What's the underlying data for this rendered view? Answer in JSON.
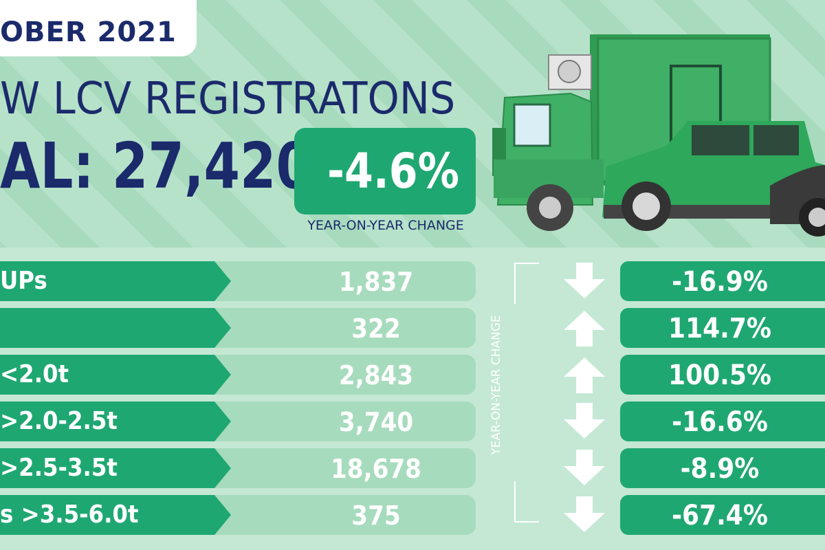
{
  "header": {
    "date": "OBER 2021",
    "headline": "W LCV REGISTRATONS",
    "total": "AL: 27,420"
  },
  "yoy": {
    "value": "-4.6%",
    "caption": "YEAR-ON-YEAR CHANGE"
  },
  "side_caption": "YEAR-ON-YEAR CHANGE",
  "rows": [
    {
      "label": "UPs",
      "value": "1,837",
      "change": "-16.9%",
      "direction": "down"
    },
    {
      "label": "",
      "value": "322",
      "change": "114.7%",
      "direction": "up"
    },
    {
      "label": " <2.0t",
      "value": "2,843",
      "change": "100.5%",
      "direction": "up"
    },
    {
      "label": ">2.0-2.5t",
      "value": "3,740",
      "change": "-16.6%",
      "direction": "down"
    },
    {
      "label": ">2.5-3.5t",
      "value": "18,678",
      "change": "-8.9%",
      "direction": "down"
    },
    {
      "label": "s >3.5-6.0t",
      "value": "375",
      "change": "-67.4%",
      "direction": "down"
    }
  ],
  "colors": {
    "navy": "#1b2a6b",
    "green": "#1fa772",
    "light_green": "#a7dbbd",
    "background": "#b3e0c8"
  },
  "icons": [
    "arrow-down-icon",
    "arrow-up-icon",
    "truck-icon",
    "pickup-icon",
    "car-icon"
  ]
}
